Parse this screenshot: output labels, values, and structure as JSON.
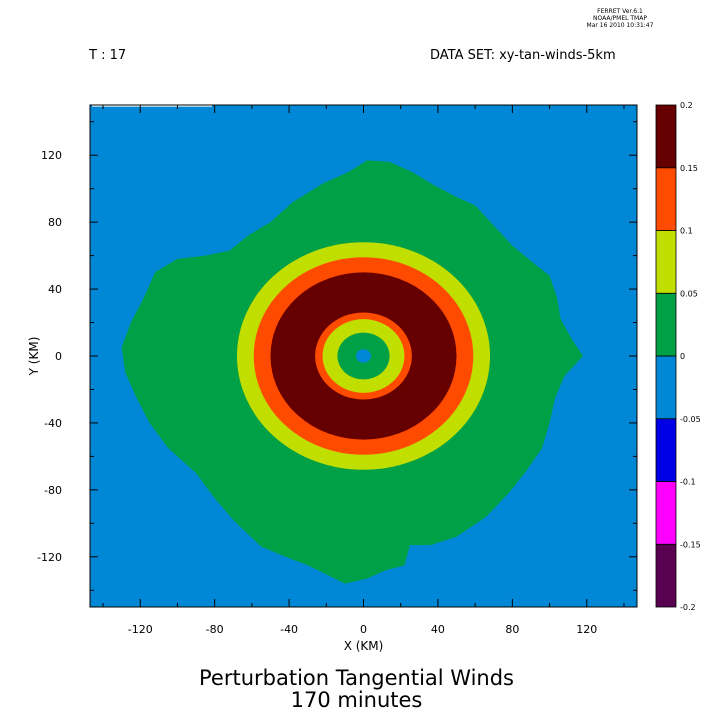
{
  "header": {
    "stamp_lines": [
      "FERRET  Ver.6.1",
      "NOAA/PMEL TMAP",
      "Mar 16 2010 10:31:47"
    ],
    "time_label": "T : 17",
    "dataset_label": "DATA SET: xy-tan-winds-5km"
  },
  "footer": {
    "title": "Perturbation Tangential Winds",
    "subtitle": "170 minutes"
  },
  "chart_data": {
    "type": "heatmap",
    "title": "Perturbation Tangential Winds",
    "subtitle": "170 minutes",
    "xlabel": "X (KM)",
    "ylabel": "Y (KM)",
    "xlim": [
      -147,
      147
    ],
    "ylim": [
      -150,
      150
    ],
    "xticks": [
      -120,
      -80,
      -40,
      0,
      40,
      80,
      120
    ],
    "yticks": [
      -120,
      -80,
      -40,
      0,
      40,
      80,
      120
    ],
    "grid": false,
    "colorbar": {
      "levels": [
        -0.2,
        -0.15,
        -0.1,
        -0.05,
        0,
        0.05,
        0.1,
        0.15,
        0.2
      ],
      "level_labels": [
        "-0.2",
        "-0.15",
        "-0.1",
        "-0.05",
        "0",
        "0.05",
        "0.1",
        "0.15",
        "0.2"
      ],
      "colors": [
        "#5a0050",
        "#ff00ff",
        "#0000e6",
        "#0088d6",
        "#00a046",
        "#c0de00",
        "#ff4b00",
        "#660000"
      ]
    },
    "field": {
      "background_value_range": [
        -0.05,
        0
      ],
      "blob_value_range": [
        0,
        0.05
      ],
      "blob_outline_km": [
        [
          -130,
          5
        ],
        [
          -125,
          20
        ],
        [
          -118,
          35
        ],
        [
          -112,
          50
        ],
        [
          -100,
          58
        ],
        [
          -85,
          60
        ],
        [
          -72,
          63
        ],
        [
          -62,
          72
        ],
        [
          -50,
          80
        ],
        [
          -38,
          92
        ],
        [
          -22,
          103
        ],
        [
          -8,
          110
        ],
        [
          2,
          117
        ],
        [
          14,
          116
        ],
        [
          26,
          110
        ],
        [
          38,
          102
        ],
        [
          50,
          95
        ],
        [
          60,
          90
        ],
        [
          70,
          78
        ],
        [
          80,
          66
        ],
        [
          92,
          55
        ],
        [
          100,
          48
        ],
        [
          104,
          35
        ],
        [
          106,
          22
        ],
        [
          112,
          10
        ],
        [
          118,
          0
        ],
        [
          108,
          -12
        ],
        [
          103,
          -25
        ],
        [
          100,
          -40
        ],
        [
          96,
          -55
        ],
        [
          88,
          -68
        ],
        [
          78,
          -82
        ],
        [
          66,
          -96
        ],
        [
          50,
          -108
        ],
        [
          36,
          -113
        ],
        [
          25,
          -113
        ],
        [
          22,
          -125
        ],
        [
          12,
          -128
        ],
        [
          2,
          -133
        ],
        [
          -10,
          -136
        ],
        [
          -30,
          -125
        ],
        [
          -42,
          -120
        ],
        [
          -55,
          -114
        ],
        [
          -70,
          -98
        ],
        [
          -80,
          -85
        ],
        [
          -90,
          -70
        ],
        [
          -105,
          -55
        ],
        [
          -115,
          -40
        ],
        [
          -122,
          -25
        ],
        [
          -128,
          -10
        ]
      ],
      "rings_km": [
        {
          "r_outer": 68,
          "value_range": [
            0.05,
            0.1
          ]
        },
        {
          "r_outer": 59,
          "value_range": [
            0.1,
            0.15
          ]
        },
        {
          "r_outer": 50,
          "value_range": [
            0.15,
            0.2
          ]
        },
        {
          "r_outer": 26,
          "value_range": [
            0.1,
            0.15
          ]
        },
        {
          "r_outer": 22,
          "value_range": [
            0.05,
            0.1
          ]
        },
        {
          "r_outer": 14,
          "value_range": [
            0,
            0.05
          ]
        },
        {
          "r_outer": 4,
          "value_range": [
            -0.05,
            0
          ]
        }
      ],
      "ring_center_km": [
        0,
        0
      ]
    }
  }
}
